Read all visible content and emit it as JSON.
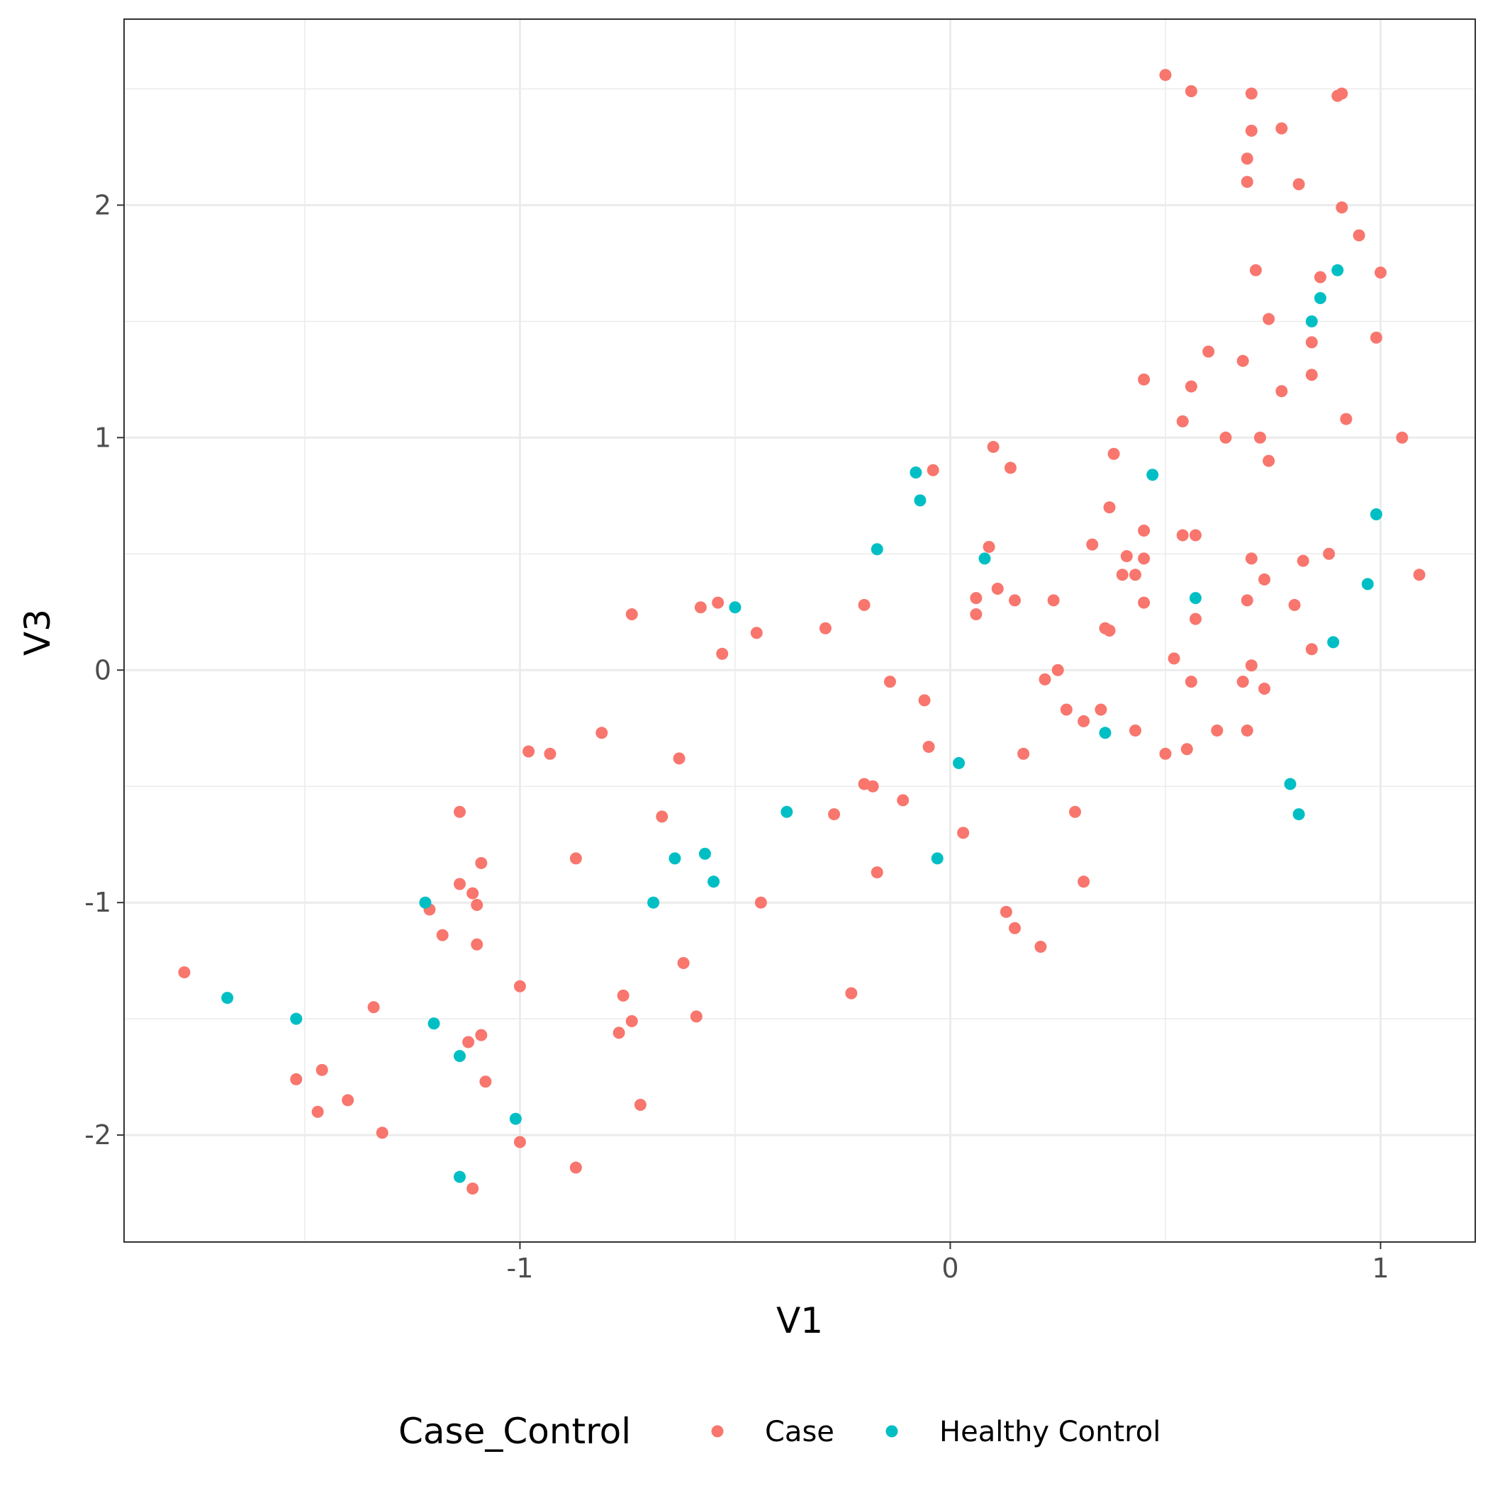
{
  "chart_data": {
    "type": "scatter",
    "xlabel": "V1",
    "ylabel": "V3",
    "xlim": [
      -1.92,
      1.22
    ],
    "ylim": [
      -2.46,
      2.8
    ],
    "x_ticks": [
      -1,
      0,
      1
    ],
    "y_ticks": [
      -2,
      -1,
      0,
      1,
      2
    ],
    "x_tick_labels": [
      "-1",
      "0",
      "1"
    ],
    "y_tick_labels": [
      "-2",
      "-1",
      "0",
      "1",
      "2"
    ],
    "grid": true,
    "legend": {
      "title": "Case_Control",
      "placement": "bottom"
    },
    "series": [
      {
        "name": "Case",
        "color": "#F8766D",
        "points": [
          [
            -1.78,
            -1.3
          ],
          [
            -1.52,
            -1.76
          ],
          [
            -1.46,
            -1.72
          ],
          [
            -1.47,
            -1.9
          ],
          [
            -1.4,
            -1.85
          ],
          [
            -1.34,
            -1.45
          ],
          [
            -1.32,
            -1.99
          ],
          [
            -1.21,
            -1.03
          ],
          [
            -1.18,
            -1.14
          ],
          [
            -1.14,
            -0.61
          ],
          [
            -1.14,
            -0.92
          ],
          [
            -1.12,
            -1.6
          ],
          [
            -1.11,
            -0.96
          ],
          [
            -1.1,
            -1.18
          ],
          [
            -1.1,
            -1.01
          ],
          [
            -1.09,
            -1.57
          ],
          [
            -1.09,
            -0.83
          ],
          [
            -1.08,
            -1.77
          ],
          [
            -1.11,
            -2.23
          ],
          [
            -1.0,
            -1.36
          ],
          [
            -1.0,
            -2.03
          ],
          [
            -0.98,
            -0.35
          ],
          [
            -0.93,
            -0.36
          ],
          [
            -0.87,
            -2.14
          ],
          [
            -0.87,
            -0.81
          ],
          [
            -0.81,
            -0.27
          ],
          [
            -0.76,
            -1.4
          ],
          [
            -0.77,
            -1.56
          ],
          [
            -0.74,
            -1.51
          ],
          [
            -0.74,
            0.24
          ],
          [
            -0.72,
            -1.87
          ],
          [
            -0.67,
            -0.63
          ],
          [
            -0.63,
            -0.38
          ],
          [
            -0.62,
            -1.26
          ],
          [
            -0.59,
            -1.49
          ],
          [
            -0.58,
            0.27
          ],
          [
            -0.54,
            0.29
          ],
          [
            -0.53,
            0.07
          ],
          [
            -0.45,
            0.16
          ],
          [
            -0.44,
            -1.0
          ],
          [
            -0.29,
            0.18
          ],
          [
            -0.27,
            -0.62
          ],
          [
            -0.23,
            -1.39
          ],
          [
            -0.2,
            0.28
          ],
          [
            -0.2,
            -0.49
          ],
          [
            -0.18,
            -0.5
          ],
          [
            -0.17,
            -0.87
          ],
          [
            -0.14,
            -0.05
          ],
          [
            -0.11,
            -0.56
          ],
          [
            -0.06,
            -0.13
          ],
          [
            -0.05,
            -0.33
          ],
          [
            -0.04,
            0.86
          ],
          [
            0.03,
            -0.7
          ],
          [
            0.06,
            0.31
          ],
          [
            0.06,
            0.24
          ],
          [
            0.09,
            0.53
          ],
          [
            0.1,
            0.96
          ],
          [
            0.11,
            0.35
          ],
          [
            0.13,
            -1.04
          ],
          [
            0.14,
            0.87
          ],
          [
            0.15,
            0.3
          ],
          [
            0.15,
            -1.11
          ],
          [
            0.17,
            -0.36
          ],
          [
            0.21,
            -1.19
          ],
          [
            0.22,
            -0.04
          ],
          [
            0.24,
            0.3
          ],
          [
            0.25,
            0.0
          ],
          [
            0.27,
            -0.17
          ],
          [
            0.29,
            -0.61
          ],
          [
            0.31,
            -0.22
          ],
          [
            0.31,
            -0.91
          ],
          [
            0.33,
            0.54
          ],
          [
            0.35,
            -0.17
          ],
          [
            0.36,
            0.18
          ],
          [
            0.37,
            0.17
          ],
          [
            0.37,
            0.7
          ],
          [
            0.38,
            0.93
          ],
          [
            0.4,
            0.41
          ],
          [
            0.41,
            0.49
          ],
          [
            0.43,
            0.41
          ],
          [
            0.43,
            -0.26
          ],
          [
            0.45,
            0.48
          ],
          [
            0.45,
            0.6
          ],
          [
            0.45,
            0.29
          ],
          [
            0.45,
            1.25
          ],
          [
            0.5,
            2.56
          ],
          [
            0.5,
            -0.36
          ],
          [
            0.52,
            0.05
          ],
          [
            0.54,
            1.07
          ],
          [
            0.54,
            0.58
          ],
          [
            0.55,
            -0.34
          ],
          [
            0.56,
            2.49
          ],
          [
            0.56,
            1.22
          ],
          [
            0.56,
            -0.05
          ],
          [
            0.57,
            0.58
          ],
          [
            0.57,
            0.22
          ],
          [
            0.6,
            1.37
          ],
          [
            0.62,
            -0.26
          ],
          [
            0.64,
            1.0
          ],
          [
            0.68,
            1.33
          ],
          [
            0.68,
            -0.05
          ],
          [
            0.69,
            2.2
          ],
          [
            0.69,
            2.1
          ],
          [
            0.69,
            0.3
          ],
          [
            0.69,
            -0.26
          ],
          [
            0.7,
            2.32
          ],
          [
            0.7,
            2.48
          ],
          [
            0.7,
            0.48
          ],
          [
            0.7,
            0.02
          ],
          [
            0.71,
            1.72
          ],
          [
            0.72,
            1.0
          ],
          [
            0.73,
            0.39
          ],
          [
            0.73,
            -0.08
          ],
          [
            0.74,
            1.51
          ],
          [
            0.74,
            0.9
          ],
          [
            0.77,
            2.33
          ],
          [
            0.77,
            1.2
          ],
          [
            0.8,
            0.28
          ],
          [
            0.81,
            2.09
          ],
          [
            0.82,
            0.47
          ],
          [
            0.84,
            1.41
          ],
          [
            0.84,
            1.27
          ],
          [
            0.84,
            0.09
          ],
          [
            0.86,
            1.69
          ],
          [
            0.88,
            0.5
          ],
          [
            0.9,
            2.47
          ],
          [
            0.91,
            1.99
          ],
          [
            0.91,
            2.48
          ],
          [
            0.92,
            1.08
          ],
          [
            0.95,
            1.87
          ],
          [
            0.99,
            1.43
          ],
          [
            1.0,
            1.71
          ],
          [
            1.05,
            1.0
          ],
          [
            1.09,
            0.41
          ]
        ]
      },
      {
        "name": "Healthy Control",
        "color": "#00BFC4",
        "points": [
          [
            -1.68,
            -1.41
          ],
          [
            -1.52,
            -1.5
          ],
          [
            -1.22,
            -1.0
          ],
          [
            -1.2,
            -1.52
          ],
          [
            -1.14,
            -1.66
          ],
          [
            -1.14,
            -2.18
          ],
          [
            -1.01,
            -1.93
          ],
          [
            -0.69,
            -1.0
          ],
          [
            -0.64,
            -0.81
          ],
          [
            -0.57,
            -0.79
          ],
          [
            -0.55,
            -0.91
          ],
          [
            -0.5,
            0.27
          ],
          [
            -0.38,
            -0.61
          ],
          [
            -0.17,
            0.52
          ],
          [
            -0.08,
            0.85
          ],
          [
            -0.07,
            0.73
          ],
          [
            -0.03,
            -0.81
          ],
          [
            0.02,
            -0.4
          ],
          [
            0.08,
            0.48
          ],
          [
            0.36,
            -0.27
          ],
          [
            0.47,
            0.84
          ],
          [
            0.57,
            0.31
          ],
          [
            0.79,
            -0.49
          ],
          [
            0.81,
            -0.62
          ],
          [
            0.84,
            1.5
          ],
          [
            0.86,
            1.6
          ],
          [
            0.89,
            0.12
          ],
          [
            0.9,
            1.72
          ],
          [
            0.97,
            0.37
          ],
          [
            0.99,
            0.67
          ]
        ]
      }
    ]
  }
}
